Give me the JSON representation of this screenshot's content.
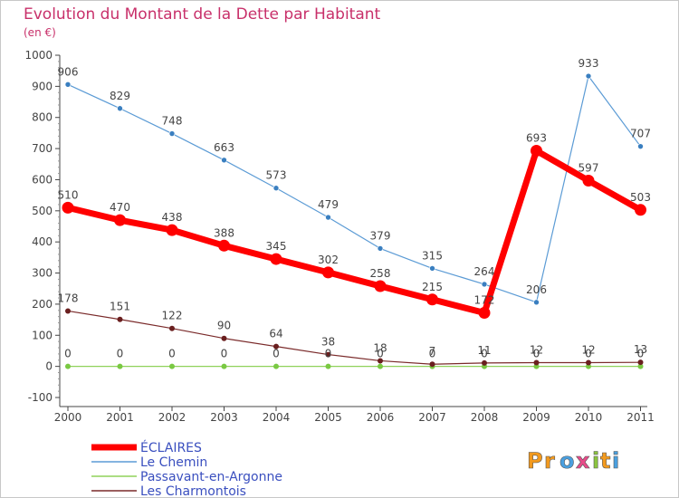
{
  "chart_data": {
    "type": "line",
    "title": "Evolution du Montant de la Dette par Habitant",
    "unit_label": "(en €)",
    "xlabel": "",
    "ylabel": "",
    "categories": [
      "2000",
      "2001",
      "2002",
      "2003",
      "2004",
      "2005",
      "2006",
      "2007",
      "2008",
      "2009",
      "2010",
      "2011"
    ],
    "ylim": [
      -100,
      1000
    ],
    "yticks": [
      -100,
      0,
      100,
      200,
      300,
      400,
      500,
      600,
      700,
      800,
      900,
      1000
    ],
    "grid": false,
    "legend_position": "bottom-left",
    "series": [
      {
        "name": "ÉCLAIRES",
        "color": "#ff0000",
        "values": [
          510,
          470,
          438,
          388,
          345,
          302,
          258,
          215,
          172,
          693,
          597,
          503
        ],
        "labels": [
          "510",
          "470",
          "438",
          "388",
          "345",
          "302",
          "258",
          "215",
          "172",
          "693",
          "597",
          "503"
        ]
      },
      {
        "name": "Le Chemin",
        "color": "#5b9bd5",
        "values": [
          906,
          829,
          748,
          663,
          573,
          479,
          379,
          315,
          264,
          206,
          933,
          707
        ],
        "labels": [
          "906",
          "829",
          "748",
          "663",
          "573",
          "479",
          "379",
          "315",
          "264",
          "206",
          "933",
          "707"
        ]
      },
      {
        "name": "Passavant-en-Argonne",
        "color": "#8fd25a",
        "values": [
          0,
          0,
          0,
          0,
          0,
          0,
          0,
          0,
          0,
          0,
          0,
          0
        ],
        "labels": [
          "0",
          "0",
          "0",
          "0",
          "0",
          "0",
          "0",
          "0",
          "0",
          "0",
          "0",
          "0"
        ]
      },
      {
        "name": "Les Charmontois",
        "color": "#7a2a2a",
        "values": [
          178,
          151,
          122,
          90,
          64,
          38,
          18,
          7,
          11,
          12,
          12,
          13
        ],
        "labels": [
          "178",
          "151",
          "122",
          "90",
          "64",
          "38",
          "18",
          "7",
          "11",
          "12",
          "12",
          "13"
        ]
      }
    ]
  },
  "brand": {
    "name": "Proxiti",
    "letters": [
      {
        "char": "P",
        "color": "#f39a1e"
      },
      {
        "char": "r",
        "color": "#f39a1e"
      },
      {
        "char": "o",
        "color": "#4aa0e0"
      },
      {
        "char": "x",
        "color": "#e84c8a"
      },
      {
        "char": "i",
        "color": "#8cc63f"
      },
      {
        "char": "t",
        "color": "#f39a1e"
      },
      {
        "char": "i",
        "color": "#4aa0e0"
      }
    ]
  }
}
